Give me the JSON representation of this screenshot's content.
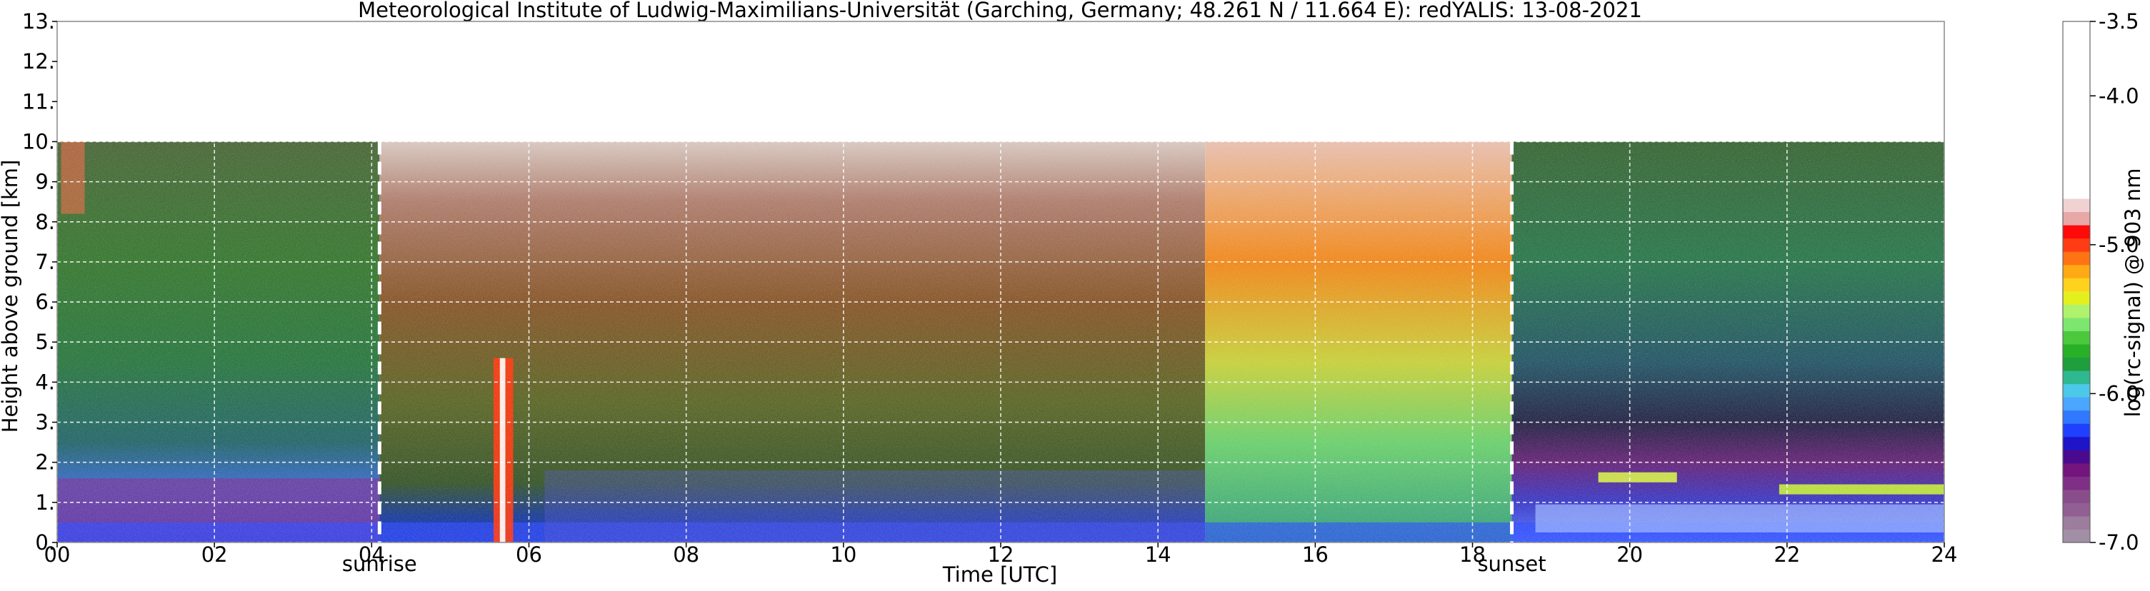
{
  "chart_data": {
    "type": "heatmap",
    "title": "Meteorological Institute of Ludwig-Maximilians-Universität (Garching, Germany; 48.261 N / 11.664 E):    redYALIS: 13-08-2021",
    "xlabel": "Time [UTC]",
    "ylabel": "Height above ground [km]",
    "xlim": [
      0,
      24
    ],
    "ylim": [
      0,
      13
    ],
    "x_ticks": [
      0,
      2,
      4,
      6,
      8,
      10,
      12,
      14,
      16,
      18,
      20,
      22,
      24
    ],
    "x_tick_labels": [
      "00",
      "02",
      "04",
      "06",
      "08",
      "10",
      "12",
      "14",
      "16",
      "18",
      "20",
      "22",
      "24"
    ],
    "y_ticks": [
      0,
      1,
      2,
      3,
      4,
      5,
      6,
      7,
      8,
      9,
      10,
      11,
      12,
      13
    ],
    "y_tick_labels": [
      "0.",
      "1.",
      "2.",
      "3.",
      "4.",
      "5.",
      "6.",
      "7.",
      "8.",
      "9.",
      "10.",
      "11.",
      "12.",
      "13."
    ],
    "grid": true,
    "data_top_km": 10,
    "annotations": [
      {
        "label": "sunrise",
        "x": 4.1
      },
      {
        "label": "sunset",
        "x": 18.5
      }
    ],
    "colorbar": {
      "label": "log(rc-signal) @ 903 nm",
      "range": [
        -7.0,
        -3.5
      ],
      "ticks": [
        -3.5,
        -4.0,
        -5.0,
        -6.0,
        -7.0
      ],
      "tick_labels": [
        "-3.5",
        "-4.0",
        "-5.0",
        "-6.0",
        "-7.0"
      ],
      "colors": [
        "#a38fa5",
        "#9c7d9d",
        "#915f93",
        "#8a4d8c",
        "#7f2f85",
        "#74147d",
        "#4a0a8f",
        "#1e14c8",
        "#1f40ff",
        "#2f78ff",
        "#4aa6ff",
        "#4cc8e8",
        "#2fb88f",
        "#1e9e3c",
        "#28b028",
        "#4cc83c",
        "#7de66e",
        "#aef26e",
        "#e4f01e",
        "#ffd21e",
        "#ffaa14",
        "#ff7314",
        "#ff3c14",
        "#ff0a0a",
        "#e8a8a8",
        "#f0d2d2",
        "#ffffff"
      ]
    }
  }
}
